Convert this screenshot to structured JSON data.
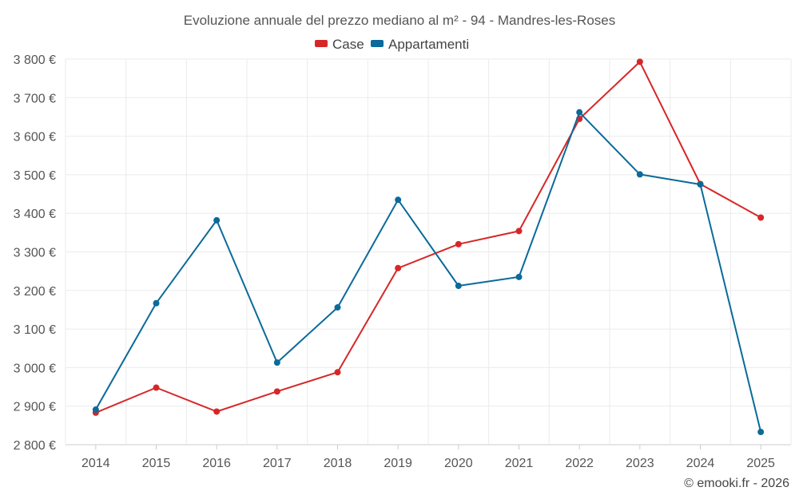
{
  "chart_data": {
    "type": "line",
    "title": "Evoluzione annuale del prezzo mediano al m² - 94 - Mandres-les-Roses",
    "categories": [
      "2014",
      "2015",
      "2016",
      "2017",
      "2018",
      "2019",
      "2020",
      "2021",
      "2022",
      "2023",
      "2024",
      "2025"
    ],
    "series": [
      {
        "name": "Case",
        "color": "#d62728",
        "values": [
          2883,
          2948,
          2886,
          2938,
          2988,
          3258,
          3320,
          3354,
          3645,
          3793,
          3476,
          3389
        ]
      },
      {
        "name": "Appartamenti",
        "color": "#0b6a9a",
        "values": [
          2891,
          3167,
          3382,
          3013,
          3156,
          3435,
          3212,
          3235,
          3662,
          3501,
          3475,
          2833
        ]
      }
    ],
    "ylim": [
      2800,
      3800
    ],
    "yticks": [
      2800,
      2900,
      3000,
      3100,
      3200,
      3300,
      3400,
      3500,
      3600,
      3700,
      3800
    ],
    "ytick_labels": [
      "2 800 €",
      "2 900 €",
      "3 000 €",
      "3 100 €",
      "3 200 €",
      "3 300 €",
      "3 400 €",
      "3 500 €",
      "3 600 €",
      "3 700 €",
      "3 800 €"
    ],
    "xlabel": "",
    "ylabel": "",
    "grid": true,
    "legend_position": "top-center"
  },
  "footer": "© emooki.fr - 2026"
}
